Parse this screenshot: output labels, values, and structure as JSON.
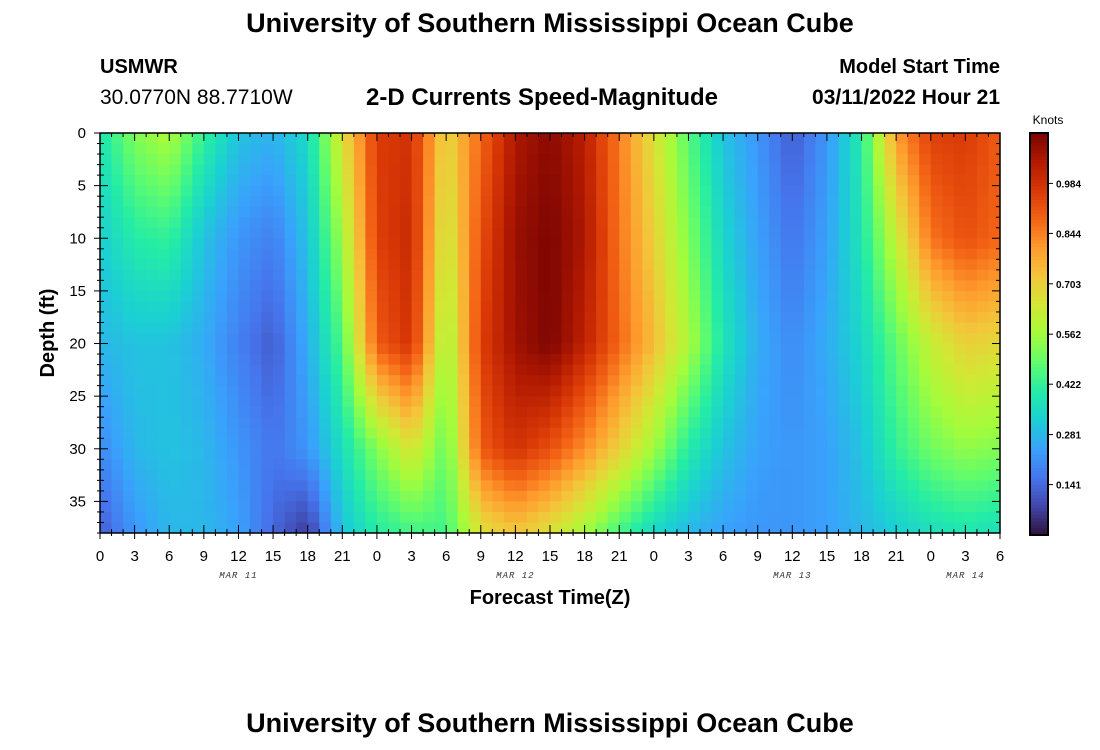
{
  "header": {
    "title": "University of Southern Mississippi Ocean Cube",
    "station": "USMWR",
    "coords": "30.0770N  88.7710W",
    "subtitle": "2-D Currents Speed-Magnitude",
    "start_label": "Model Start Time",
    "start_value": "03/11/2022 Hour 21"
  },
  "footer": {
    "title": "University of Southern Mississippi Ocean Cube"
  },
  "chart_data": {
    "type": "heatmap",
    "title": "2-D Currents Speed-Magnitude",
    "xlabel": "Forecast Time(Z)",
    "ylabel": "Depth (ft)",
    "x_range_hours": [
      0,
      78
    ],
    "x_tick_labels": [
      "0",
      "3",
      "6",
      "9",
      "12",
      "15",
      "18",
      "21",
      "0",
      "3",
      "6",
      "9",
      "12",
      "15",
      "18",
      "21",
      "0",
      "3",
      "6",
      "9",
      "12",
      "15",
      "18",
      "21",
      "0",
      "3",
      "6"
    ],
    "date_labels": [
      {
        "label": "MAR 11",
        "hour": 12
      },
      {
        "label": "MAR 12",
        "hour": 36
      },
      {
        "label": "MAR 13",
        "hour": 60
      },
      {
        "label": "MAR 14",
        "hour": 75
      }
    ],
    "y_range": [
      0,
      38
    ],
    "y_reversed": true,
    "y_ticks": [
      0,
      5,
      10,
      15,
      20,
      25,
      30,
      35
    ],
    "colorbar": {
      "unit": "Knots",
      "min": 0.0,
      "max": 1.125,
      "ticks": [
        0.141,
        0.281,
        0.422,
        0.562,
        0.703,
        0.844,
        0.984
      ],
      "colors": [
        "#30123b",
        "#4145ab",
        "#4675ed",
        "#39a2fc",
        "#1bcfd4",
        "#24eca6",
        "#61fc6c",
        "#a4fc3b",
        "#d1e834",
        "#f3c63a",
        "#fe9b2d",
        "#f36315",
        "#d93806",
        "#b11901",
        "#7a0403"
      ]
    },
    "speed_samples": {
      "depths_ft": [
        0,
        10,
        20,
        30,
        38
      ],
      "hours": [
        0,
        3,
        6,
        9,
        12,
        15,
        18,
        21,
        24,
        27,
        30,
        33,
        36,
        39,
        42,
        45,
        48,
        51,
        54,
        57,
        60,
        63,
        66,
        69,
        72,
        75,
        78
      ],
      "values": [
        [
          0.38,
          0.52,
          0.58,
          0.42,
          0.3,
          0.27,
          0.35,
          0.66,
          0.96,
          0.98,
          0.68,
          0.88,
          1.05,
          1.1,
          1.03,
          0.85,
          0.66,
          0.47,
          0.3,
          0.22,
          0.12,
          0.22,
          0.4,
          0.8,
          0.95,
          0.96,
          0.9
        ],
        [
          0.32,
          0.4,
          0.42,
          0.3,
          0.22,
          0.18,
          0.3,
          0.56,
          0.95,
          1.0,
          0.62,
          0.92,
          1.08,
          1.12,
          1.05,
          0.86,
          0.7,
          0.52,
          0.34,
          0.24,
          0.16,
          0.24,
          0.38,
          0.62,
          0.86,
          0.92,
          0.88
        ],
        [
          0.28,
          0.3,
          0.3,
          0.26,
          0.18,
          0.12,
          0.26,
          0.46,
          0.9,
          0.98,
          0.55,
          0.95,
          1.07,
          1.12,
          1.02,
          0.88,
          0.74,
          0.58,
          0.38,
          0.26,
          0.2,
          0.26,
          0.34,
          0.48,
          0.62,
          0.7,
          0.68
        ],
        [
          0.2,
          0.28,
          0.3,
          0.28,
          0.22,
          0.16,
          0.22,
          0.36,
          0.52,
          0.66,
          0.48,
          0.9,
          0.98,
          0.92,
          0.82,
          0.7,
          0.56,
          0.4,
          0.3,
          0.24,
          0.22,
          0.24,
          0.3,
          0.42,
          0.5,
          0.54,
          0.52
        ],
        [
          0.12,
          0.22,
          0.28,
          0.28,
          0.24,
          0.14,
          0.06,
          0.3,
          0.4,
          0.44,
          0.44,
          0.66,
          0.72,
          0.66,
          0.56,
          0.44,
          0.34,
          0.28,
          0.24,
          0.22,
          0.22,
          0.24,
          0.28,
          0.32,
          0.36,
          0.38,
          0.36
        ]
      ]
    }
  }
}
